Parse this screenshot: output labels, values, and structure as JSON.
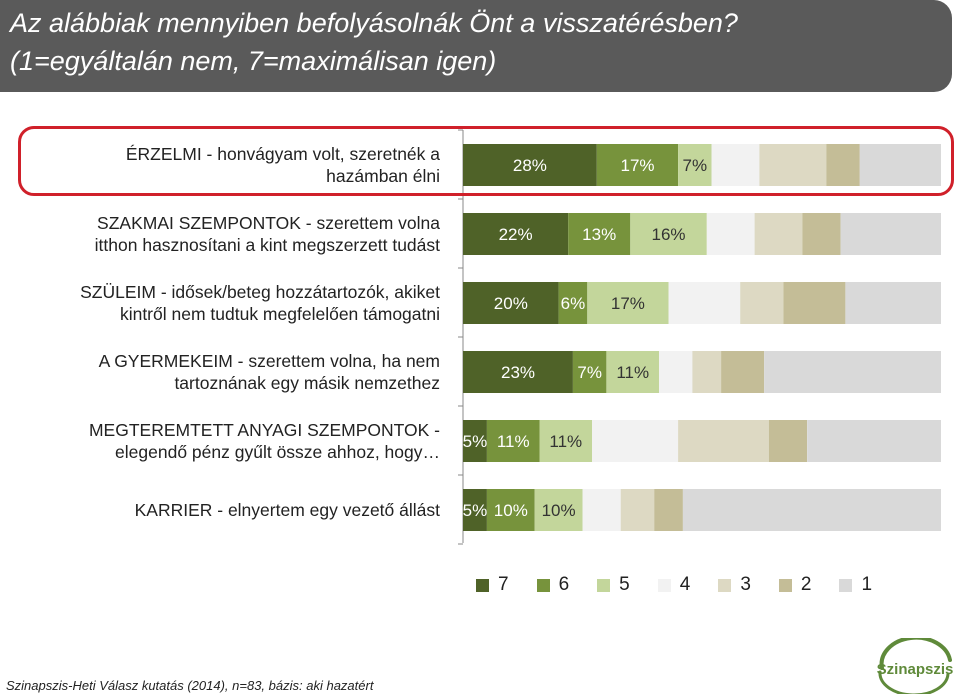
{
  "header": {
    "title_line_1": "Az alábbiak mennyiben befolyásolnák Önt a visszatérésben?",
    "title_line_2": "(1=egyáltalán nem, 7=maximálisan igen)"
  },
  "footnote": "Szinapszis-Heti Válasz kutatás (2014), n=83, bázis: aki hazatért",
  "logo_text": "Szinapszis",
  "chart_data": {
    "type": "bar",
    "stacked": true,
    "orientation": "horizontal",
    "percent_stacked": true,
    "categories": [
      {
        "line1": "ÉRZELMI - honvágyam volt, szeretnék a",
        "line2": "hazámban élni"
      },
      {
        "line1": "SZAKMAI SZEMPONTOK - szerettem volna",
        "line2": "itthon hasznosítani a kint megszerzett tudást"
      },
      {
        "line1": "SZÜLEIM - idősek/beteg hozzátartozók, akiket",
        "line2": "kintről nem tudtuk megfelelően támogatni"
      },
      {
        "line1": "A GYERMEKEIM - szerettem volna, ha nem",
        "line2": "tartoznának egy másik nemzethez"
      },
      {
        "line1": "MEGTEREMTETT ANYAGI SZEMPONTOK -",
        "line2": "elegendő pénz gyűlt össze ahhoz, hogy…"
      },
      {
        "line1": "KARRIER - elnyertem egy vezető állást",
        "line2": ""
      }
    ],
    "series": [
      {
        "name": "7",
        "color": "#4f6228",
        "values": [
          28,
          22,
          20,
          23,
          5,
          5
        ],
        "labels": [
          "28%",
          "22%",
          "20%",
          "23%",
          "5%",
          "5%"
        ]
      },
      {
        "name": "6",
        "color": "#77933c",
        "values": [
          17,
          13,
          6,
          7,
          11,
          10
        ],
        "labels": [
          "17%",
          "13%",
          "6%",
          "7%",
          "11%",
          "10%"
        ]
      },
      {
        "name": "5",
        "color": "#c3d69b",
        "values": [
          7,
          16,
          17,
          11,
          11,
          10
        ],
        "labels": [
          "7%",
          "16%",
          "17%",
          "11%",
          "11%",
          "10%"
        ]
      },
      {
        "name": "4",
        "color": "#f2f2f2",
        "values": [
          10,
          10,
          15,
          7,
          18,
          8
        ],
        "labels": [
          "",
          "",
          "",
          "",
          "",
          ""
        ]
      },
      {
        "name": "3",
        "color": "#ddd9c3",
        "values": [
          14,
          10,
          9,
          6,
          19,
          7
        ],
        "labels": [
          "",
          "",
          "",
          "",
          "",
          ""
        ]
      },
      {
        "name": "2",
        "color": "#c4bd97",
        "values": [
          7,
          8,
          13,
          9,
          8,
          6
        ],
        "labels": [
          "",
          "",
          "",
          "",
          "",
          ""
        ]
      },
      {
        "name": "1",
        "color": "#d9d9d9",
        "values": [
          17,
          21,
          20,
          37,
          28,
          54
        ],
        "labels": [
          "",
          "",
          "",
          "",
          "",
          ""
        ]
      }
    ],
    "xlim": [
      0,
      100
    ],
    "legend_position": "bottom",
    "grid": false
  }
}
